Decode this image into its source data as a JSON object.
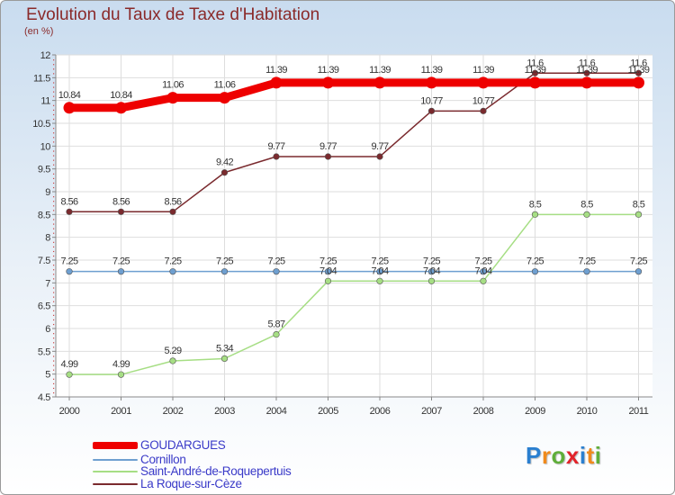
{
  "header": {
    "title": "Evolution du Taux de Taxe d'Habitation",
    "unit": "(en %)"
  },
  "brand": {
    "name": "Proxiti",
    "letter_colors": [
      "#2a7fd0",
      "#f08a1c",
      "#5fae3a",
      "#e2232a",
      "#2a7fd0",
      "#f08a1c",
      "#5fae3a"
    ]
  },
  "chart_data": {
    "type": "line",
    "title": "Evolution du Taux de Taxe d'Habitation",
    "ylabel": "(en %)",
    "xlabel": "",
    "ylim": [
      4.5,
      12
    ],
    "yticks": [
      "4.5",
      "5",
      "5.5",
      "6",
      "6.5",
      "7",
      "7.5",
      "8",
      "8.5",
      "9",
      "9.5",
      "10",
      "10.5",
      "11",
      "11.5",
      "12"
    ],
    "categories": [
      "2000",
      "2001",
      "2002",
      "2003",
      "2004",
      "2005",
      "2006",
      "2007",
      "2008",
      "2009",
      "2010",
      "2011"
    ],
    "legend_position": "bottom-left",
    "series": [
      {
        "name": "GOUDARGUES",
        "color": "#ee0000",
        "values": [
          10.84,
          10.84,
          11.06,
          11.06,
          11.39,
          11.39,
          11.39,
          11.39,
          11.39,
          11.39,
          11.39,
          11.39
        ],
        "labels": [
          "10.84",
          "10.84",
          "11.06",
          "11.06",
          "11.39",
          "11.39",
          "11.39",
          "11.39",
          "11.39",
          "11.39",
          "11.39",
          "11.39"
        ]
      },
      {
        "name": "Cornillon",
        "color": "#6e9fd0",
        "values": [
          7.25,
          7.25,
          7.25,
          7.25,
          7.25,
          7.25,
          7.25,
          7.25,
          7.25,
          7.25,
          7.25,
          7.25
        ],
        "labels": [
          "7.25",
          "7.25",
          "7.25",
          "7.25",
          "7.25",
          "7.25",
          "7.25",
          "7.25",
          "7.25",
          "7.25",
          "7.25",
          "7.25"
        ]
      },
      {
        "name": "Saint-André-de-Roquepertuis",
        "color": "#a6de84",
        "values": [
          4.99,
          4.99,
          5.29,
          5.34,
          5.87,
          7.04,
          7.04,
          7.04,
          7.04,
          8.5,
          8.5,
          8.5
        ],
        "labels": [
          "4.99",
          "4.99",
          "5.29",
          "5.34",
          "5.87",
          "7.04",
          "7.04",
          "7.04",
          "7.04",
          "8.5",
          "8.5",
          "8.5"
        ]
      },
      {
        "name": "La Roque-sur-Cèze",
        "color": "#7a2a2e",
        "values": [
          8.56,
          8.56,
          8.56,
          9.42,
          9.77,
          9.77,
          9.77,
          10.77,
          10.77,
          11.6,
          11.6,
          11.6
        ],
        "labels": [
          "8.56",
          "8.56",
          "8.56",
          "9.42",
          "9.77",
          "9.77",
          "9.77",
          "10.77",
          "10.77",
          "11.6",
          "11.6",
          "11.6"
        ]
      }
    ]
  }
}
